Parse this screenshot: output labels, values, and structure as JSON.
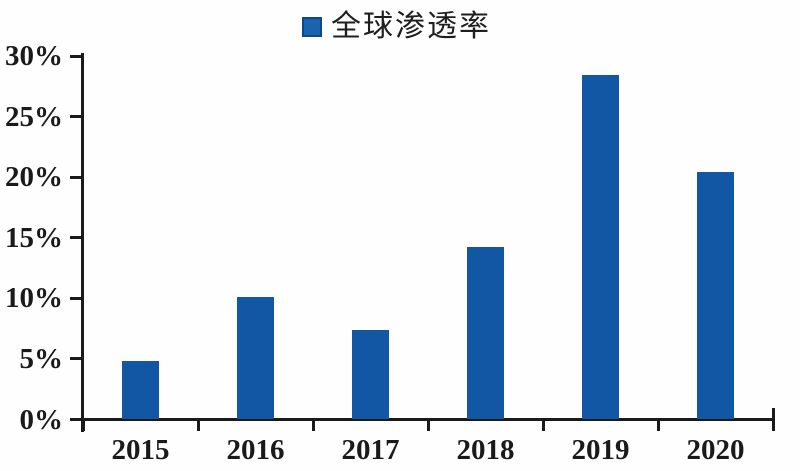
{
  "legend": {
    "label": "全球渗透率",
    "marker_color": "#1B63AE",
    "marker_border": "#0F4886"
  },
  "colors": {
    "bar": "#1257A4",
    "axis": "#1A1A1A",
    "text": "#1A1A1A",
    "background": "#FEFEFE"
  },
  "chart_data": {
    "type": "bar",
    "title": "",
    "series_name": "全球渗透率",
    "categories": [
      "2015",
      "2016",
      "2017",
      "2018",
      "2019",
      "2020"
    ],
    "values": [
      4.8,
      10.1,
      7.4,
      14.2,
      28.4,
      20.4
    ],
    "unit": "%",
    "xlabel": "",
    "ylabel": "",
    "ylim": [
      0,
      30
    ],
    "ytick_step": 5,
    "ytick_labels": [
      "0%",
      "5%",
      "10%",
      "15%",
      "20%",
      "25%",
      "30%"
    ],
    "grid": false,
    "legend_position": "top-center"
  }
}
